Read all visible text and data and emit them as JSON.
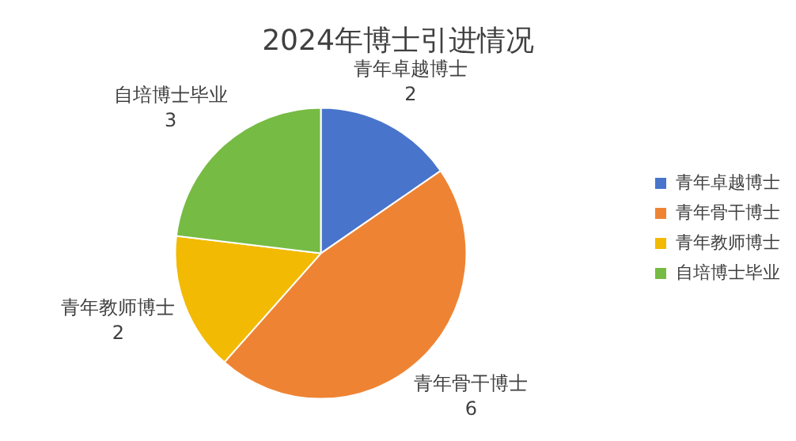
{
  "chart_data": {
    "type": "pie",
    "title": "2024年博士引进情况",
    "categories": [
      "青年卓越博士",
      "青年骨干博士",
      "青年教师博士",
      "自培博士毕业"
    ],
    "values": [
      2,
      6,
      2,
      3
    ],
    "colors": [
      "#4874cb",
      "#ee8433",
      "#f2ba02",
      "#76bb43"
    ],
    "data_labels": true,
    "legend": "right"
  }
}
